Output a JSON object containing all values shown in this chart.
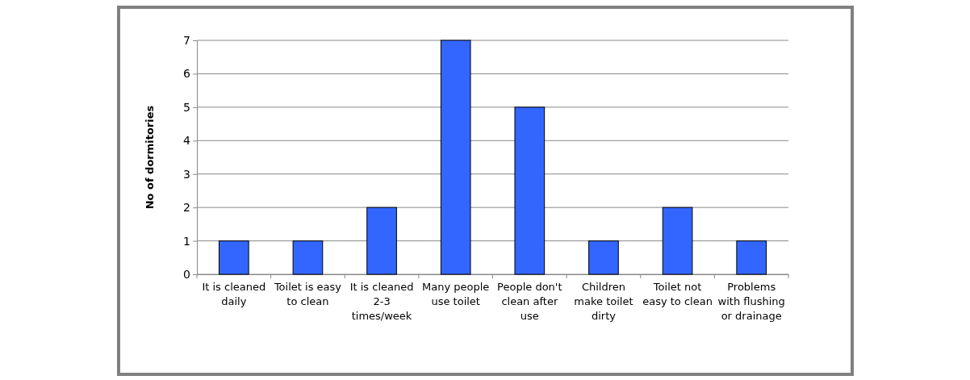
{
  "chart_data": {
    "type": "bar",
    "ylabel": "No of dormitories",
    "categories": [
      "It is cleaned daily",
      "Toilet is easy to clean",
      "It is cleaned 2-3 times/week",
      "Many people use toilet",
      "People don't clean after use",
      "Children make toilet dirty",
      "Toilet not easy to clean",
      "Problems with flushing or drainage"
    ],
    "values": [
      1,
      1,
      2,
      7,
      5,
      1,
      2,
      1
    ],
    "color": "#3366ff",
    "ylim": [
      0,
      7
    ],
    "yticks": [
      0,
      1,
      2,
      3,
      4,
      5,
      6,
      7
    ],
    "grid": "y"
  }
}
